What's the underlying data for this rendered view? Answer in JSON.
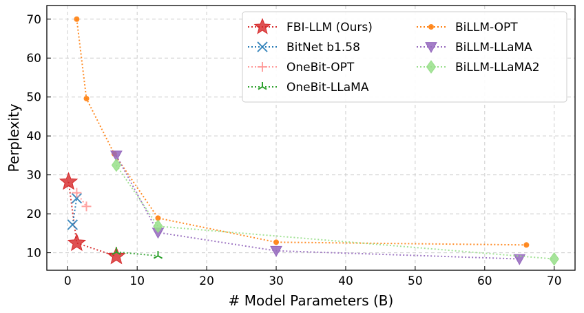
{
  "chart_data": {
    "type": "line",
    "xlabel": "# Model Parameters (B)",
    "ylabel": "Perplexity",
    "xlim": [
      -3,
      73
    ],
    "ylim": [
      5.5,
      73.5
    ],
    "x_ticks": [
      0,
      10,
      20,
      30,
      40,
      50,
      60,
      70
    ],
    "y_ticks": [
      10,
      20,
      30,
      40,
      50,
      60,
      70
    ],
    "grid": true,
    "legend_position": "top-right",
    "series": [
      {
        "name": "FBI-LLM (Ours)",
        "color": "#d62728",
        "marker": "star",
        "x": [
          0.13,
          1.3,
          7.0
        ],
        "y": [
          28.2,
          12.5,
          9.1
        ]
      },
      {
        "name": "BitNet b1.58",
        "color": "#1f77b4",
        "marker": "x",
        "x": [
          0.7,
          1.3
        ],
        "y": [
          17.2,
          24.0
        ]
      },
      {
        "name": "OneBit-OPT",
        "color": "#ff9896",
        "marker": "plus",
        "x": [
          1.3,
          2.7
        ],
        "y": [
          25.4,
          21.9
        ]
      },
      {
        "name": "OneBit-LLaMA",
        "color": "#2ca02c",
        "marker": "tri",
        "x": [
          7.0,
          13.0
        ],
        "y": [
          10.2,
          9.2
        ]
      },
      {
        "name": "BiLLM-OPT",
        "color": "#ff7f0e",
        "marker": "dot",
        "x": [
          1.3,
          2.7,
          6.7,
          13.0,
          30.0,
          66.0
        ],
        "y": [
          70.0,
          49.6,
          35.4,
          18.9,
          12.7,
          12.0
        ]
      },
      {
        "name": "BiLLM-LLaMA",
        "color": "#9467bd",
        "marker": "tri-down",
        "x": [
          7.0,
          13.0,
          30.0,
          65.0
        ],
        "y": [
          35.0,
          15.2,
          10.5,
          8.4
        ]
      },
      {
        "name": "BiLLM-LLaMA2",
        "color": "#98df8a",
        "marker": "diamond",
        "x": [
          7.0,
          13.0,
          70.0
        ],
        "y": [
          32.5,
          16.8,
          8.4
        ]
      }
    ]
  }
}
